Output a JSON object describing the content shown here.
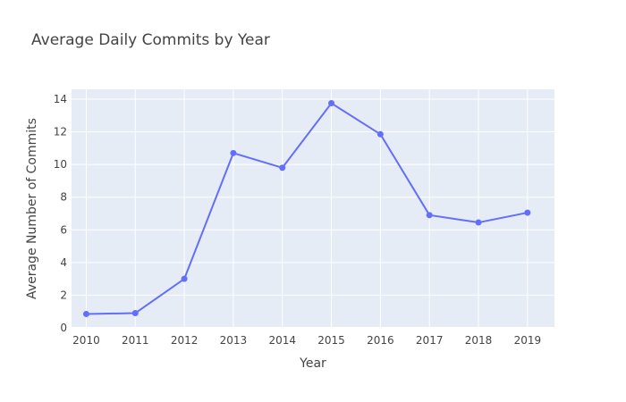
{
  "chart_data": {
    "type": "line",
    "title": "Average Daily Commits by Year",
    "xlabel": "Year",
    "ylabel": "Average Number of Commits",
    "x": [
      2010,
      2011,
      2012,
      2013,
      2014,
      2015,
      2016,
      2017,
      2018,
      2019
    ],
    "x_tick_labels": [
      "2010",
      "2011",
      "2012",
      "2013",
      "2014",
      "2015",
      "2016",
      "2017",
      "2018",
      "2019"
    ],
    "y_tick_labels": [
      "0",
      "2",
      "4",
      "6",
      "8",
      "10",
      "12",
      "14"
    ],
    "y_ticks": [
      0,
      2,
      4,
      6,
      8,
      10,
      12,
      14
    ],
    "xlim": [
      2009.7,
      2019.55
    ],
    "ylim": [
      0,
      14.6
    ],
    "grid": true,
    "series": [
      {
        "values": [
          0.85,
          0.9,
          3.0,
          10.7,
          9.8,
          13.75,
          11.85,
          6.9,
          6.45,
          7.05
        ],
        "color": "#636efa",
        "mode": "lines+markers"
      }
    ],
    "plot_background": "#e5ecf6",
    "grid_color": "#ffffff"
  }
}
